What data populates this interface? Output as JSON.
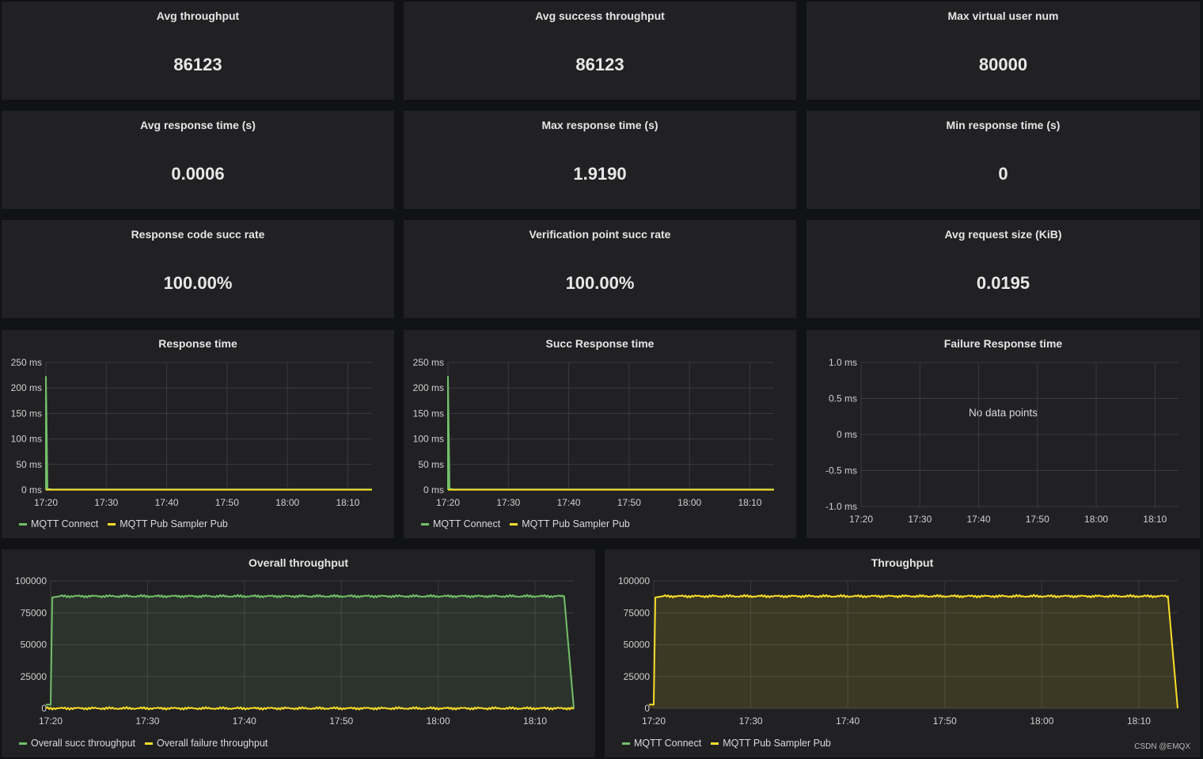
{
  "stats": [
    {
      "title": "Avg throughput",
      "value": "86123"
    },
    {
      "title": "Avg success throughput",
      "value": "86123"
    },
    {
      "title": "Max virtual user num",
      "value": "80000"
    },
    {
      "title": "Avg response time (s)",
      "value": "0.0006"
    },
    {
      "title": "Max response time (s)",
      "value": "1.9190"
    },
    {
      "title": "Min response time (s)",
      "value": "0"
    },
    {
      "title": "Response code succ rate",
      "value": "100.00%"
    },
    {
      "title": "Verification point succ rate",
      "value": "100.00%"
    },
    {
      "title": "Avg request size (KiB)",
      "value": "0.0195"
    }
  ],
  "colors": {
    "green": "#73bf69",
    "yellow": "#fade2a"
  },
  "watermark": "CSDN @EMQX",
  "chart_data": [
    {
      "type": "line",
      "title": "Response time",
      "x_ticks": [
        "17:20",
        "17:30",
        "17:40",
        "17:50",
        "18:00",
        "18:10"
      ],
      "y_ticks": [
        "250 ms",
        "200 ms",
        "150 ms",
        "100 ms",
        "50 ms",
        "0 ms"
      ],
      "ylim": [
        0,
        250
      ],
      "xlim": [
        "17:20",
        "18:14"
      ],
      "grid": true,
      "legend_position": "bottom-left",
      "series": [
        {
          "name": "MQTT Connect",
          "color": "#73bf69",
          "x": [
            "17:20",
            "17:20",
            "17:20",
            "17:21",
            "18:14"
          ],
          "values": [
            0,
            222,
            2,
            1,
            1
          ]
        },
        {
          "name": "MQTT Pub Sampler Pub",
          "color": "#fade2a",
          "x": [
            "17:20",
            "18:14"
          ],
          "values": [
            0.5,
            0.5
          ]
        }
      ]
    },
    {
      "type": "line",
      "title": "Succ Response time",
      "x_ticks": [
        "17:20",
        "17:30",
        "17:40",
        "17:50",
        "18:00",
        "18:10"
      ],
      "y_ticks": [
        "250 ms",
        "200 ms",
        "150 ms",
        "100 ms",
        "50 ms",
        "0 ms"
      ],
      "ylim": [
        0,
        250
      ],
      "xlim": [
        "17:20",
        "18:14"
      ],
      "grid": true,
      "legend_position": "bottom-left",
      "series": [
        {
          "name": "MQTT Connect",
          "color": "#73bf69",
          "x": [
            "17:20",
            "17:20",
            "17:20",
            "17:21",
            "18:14"
          ],
          "values": [
            0,
            222,
            2,
            1,
            1
          ]
        },
        {
          "name": "MQTT Pub Sampler Pub",
          "color": "#fade2a",
          "x": [
            "17:20",
            "18:14"
          ],
          "values": [
            0.5,
            0.5
          ]
        }
      ]
    },
    {
      "type": "line",
      "title": "Failure Response time",
      "x_ticks": [
        "17:20",
        "17:30",
        "17:40",
        "17:50",
        "18:00",
        "18:10"
      ],
      "y_ticks": [
        "1.0 ms",
        "0.5 ms",
        "0 ms",
        "-0.5 ms",
        "-1.0 ms"
      ],
      "ylim": [
        -1,
        1
      ],
      "xlim": [
        "17:20",
        "18:14"
      ],
      "grid": true,
      "annotation": "No data points",
      "series": []
    },
    {
      "type": "area",
      "title": "Overall throughput",
      "x_ticks": [
        "17:20",
        "17:30",
        "17:40",
        "17:50",
        "18:00",
        "18:10"
      ],
      "y_ticks": [
        "100000",
        "75000",
        "50000",
        "25000",
        "0"
      ],
      "ylim": [
        0,
        100000
      ],
      "xlim": [
        "17:20",
        "18:14"
      ],
      "grid": true,
      "legend_position": "bottom-left",
      "series": [
        {
          "name": "Overall succ throughput",
          "color": "#73bf69",
          "fill": true,
          "x": [
            "17:19",
            "17:20",
            "17:20",
            "17:21",
            "18:13",
            "18:14"
          ],
          "values": [
            3000,
            3000,
            87000,
            88000,
            88000,
            0
          ]
        },
        {
          "name": "Overall failure throughput",
          "color": "#fade2a",
          "fill": false,
          "x": [
            "17:19",
            "18:14"
          ],
          "values": [
            0,
            0
          ]
        }
      ]
    },
    {
      "type": "area",
      "title": "Throughput",
      "x_ticks": [
        "17:20",
        "17:30",
        "17:40",
        "17:50",
        "18:00",
        "18:10"
      ],
      "y_ticks": [
        "100000",
        "75000",
        "50000",
        "25000",
        "0"
      ],
      "ylim": [
        0,
        100000
      ],
      "xlim": [
        "17:20",
        "18:14"
      ],
      "grid": true,
      "legend_position": "bottom-left",
      "series": [
        {
          "name": "MQTT Connect",
          "color": "#73bf69",
          "fill": false,
          "x": [],
          "values": []
        },
        {
          "name": "MQTT Pub Sampler Pub",
          "color": "#fade2a",
          "fill": true,
          "x": [
            "17:19",
            "17:20",
            "17:20",
            "17:21",
            "18:13",
            "18:14"
          ],
          "values": [
            3000,
            3000,
            87000,
            88000,
            88000,
            0
          ]
        }
      ]
    }
  ]
}
